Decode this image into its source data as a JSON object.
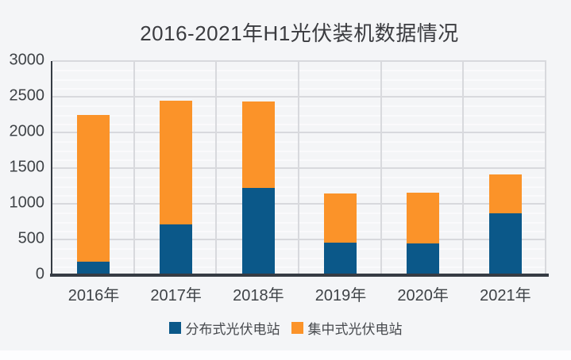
{
  "chart_data": {
    "type": "bar",
    "stacked": true,
    "title": "2016-2021年H1光伏装机数据情况",
    "categories": [
      "2016年",
      "2017年",
      "2018年",
      "2019年",
      "2020年",
      "2021年"
    ],
    "series": [
      {
        "name": "分布式光伏电站",
        "color": "#0b5889",
        "values": [
          190,
          711,
          1224,
          458,
          443,
          867
        ]
      },
      {
        "name": "集中式光伏电站",
        "color": "#fb9329",
        "values": [
          2060,
          1729,
          1206,
          682,
          708,
          543
        ]
      }
    ],
    "totals": [
      2250,
      2440,
      2430,
      1140,
      1151,
      1410
    ],
    "xlabel": "",
    "ylabel": "",
    "ylim": [
      0,
      3000
    ],
    "yticks": [
      0,
      500,
      1000,
      1500,
      2000,
      2500,
      3000
    ],
    "ytick_minor_step": 125,
    "grid": true,
    "legend_position": "bottom"
  }
}
